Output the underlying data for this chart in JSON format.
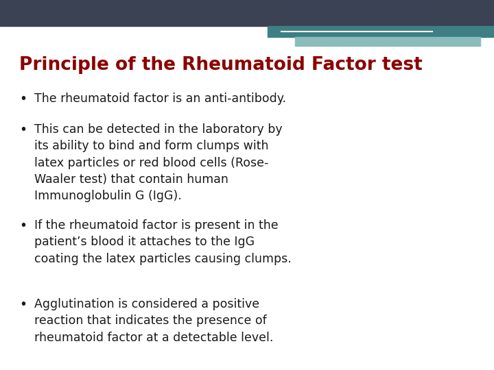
{
  "title": "Principle of the Rheumatoid Factor test",
  "title_color": "#8B0000",
  "title_fontsize": 19,
  "background_color": "#FFFFFF",
  "header_bar_color": "#3B4254",
  "header_teal_color": "#3D7F82",
  "header_light_teal": "#8BBCBC",
  "header_white_line": "#FFFFFF",
  "bullet_points": [
    "The rheumatoid factor is an anti-antibody.",
    "This can be detected in the laboratory by\nits ability to bind and form clumps with\nlatex particles or red blood cells (Rose-\nWaaler test) that contain human\nImmunoglobulin G (IgG).",
    "If the rheumatoid factor is present in the\npatient’s blood it attaches to the IgG\ncoating the latex particles causing clumps.",
    "Agglutination is considered a positive\nreaction that indicates the presence of\nrheumatoid factor at a detectable level."
  ],
  "bullet_color": "#1a1a1a",
  "bullet_fontsize": 12.5,
  "bullet_font": "DejaVu Sans",
  "fig_width": 7.2,
  "fig_height": 5.4,
  "dpi": 100
}
